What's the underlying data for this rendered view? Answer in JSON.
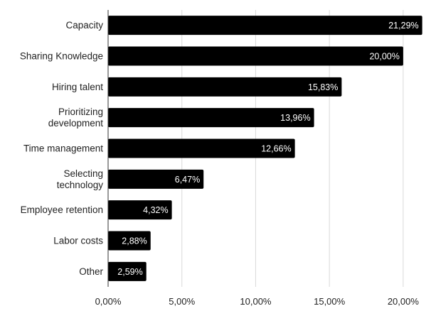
{
  "chart_data": {
    "type": "bar",
    "orientation": "horizontal",
    "categories": [
      [
        "Capacity"
      ],
      [
        "Sharing Knowledge"
      ],
      [
        "Hiring talent"
      ],
      [
        "Prioritizing",
        "development"
      ],
      [
        "Time management"
      ],
      [
        "Selecting",
        "technology"
      ],
      [
        "Employee retention"
      ],
      [
        "Labor costs"
      ],
      [
        "Other"
      ]
    ],
    "values": [
      21.29,
      20.0,
      15.83,
      13.96,
      12.66,
      6.47,
      4.32,
      2.88,
      2.59
    ],
    "data_labels": [
      "21,29%",
      "20,00%",
      "15,83%",
      "13,96%",
      "12,66%",
      "6,47%",
      "4,32%",
      "2,88%",
      "2,59%"
    ],
    "x_ticks": [
      0,
      5,
      10,
      15,
      20
    ],
    "x_tick_labels": [
      "0,00%",
      "5,00%",
      "10,00%",
      "15,00%",
      "20,00%"
    ],
    "xlim": [
      0,
      21.5
    ],
    "grid": "vertical",
    "bar_color": "#000000",
    "grid_color": "#d9d9d9",
    "title": "",
    "xlabel": "",
    "ylabel": ""
  }
}
